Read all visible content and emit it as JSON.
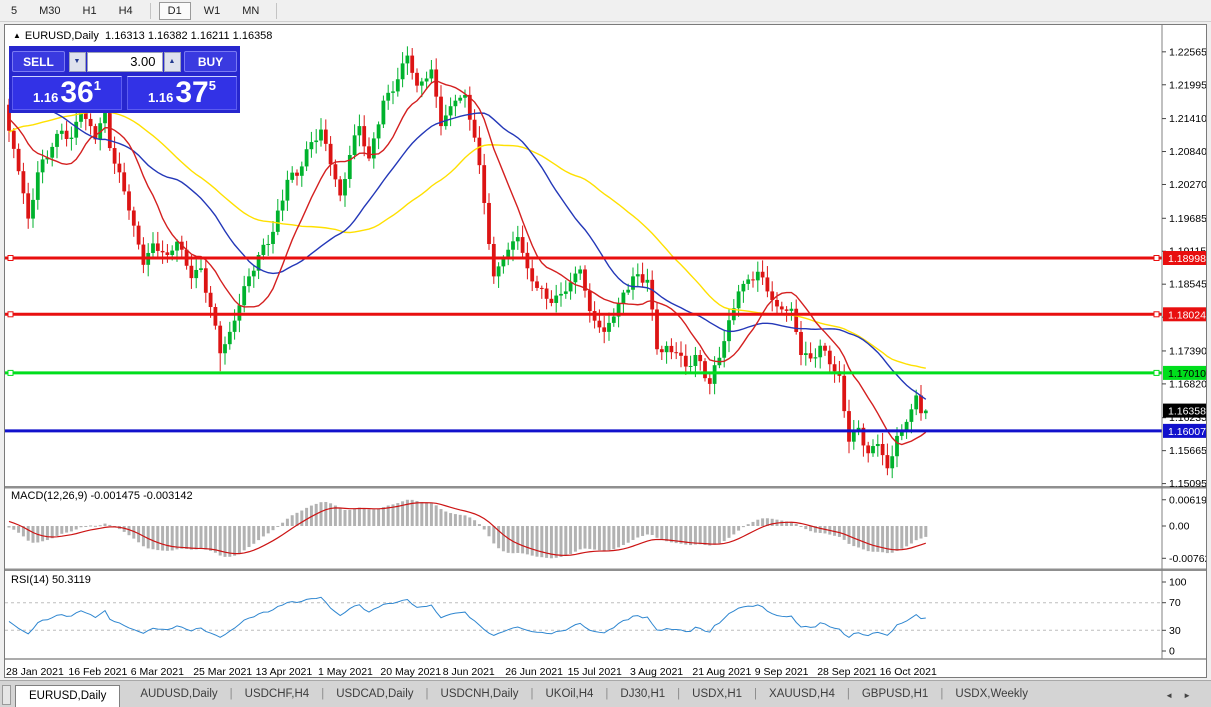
{
  "toolbar": {
    "timeframes": [
      "5",
      "M30",
      "H1",
      "H4",
      "D1",
      "W1",
      "MN"
    ],
    "active": "D1"
  },
  "chart_header": {
    "symbol": "EURUSD,Daily",
    "ohlc": "1.16313 1.16382 1.16211 1.16358"
  },
  "trade_panel": {
    "sell_label": "SELL",
    "buy_label": "BUY",
    "volume": "3.00",
    "sell_price": {
      "small": "1.16",
      "big": "36",
      "sup": "1"
    },
    "buy_price": {
      "small": "1.16",
      "big": "37",
      "sup": "5"
    }
  },
  "colors": {
    "candle_up": "#00B22D",
    "candle_down": "#DC1414",
    "hline_red": "#E80F0F",
    "hline_green": "#00DE1C",
    "hline_blue": "#1111CC",
    "ma_fast_red": "#D42020",
    "ma_mid_blue": "#2438B8",
    "ma_slow_yellow": "#FFE000",
    "macd_bar": "#B2B2B2",
    "macd_signal": "#CC1414",
    "rsi_line": "#2E86D0",
    "label_black_bg": "#000000",
    "axis_text": "#000000"
  },
  "price_axis": {
    "ticks": [
      1.22565,
      1.21995,
      1.2141,
      1.2084,
      1.2027,
      1.19685,
      1.19115,
      1.18545,
      1.17975,
      1.1739,
      1.1682,
      1.16235,
      1.15665,
      1.15095
    ],
    "colored_labels": [
      {
        "text": "1.18998",
        "price": 1.18998,
        "bg": "#E80F0F",
        "fg": "#ffffff"
      },
      {
        "text": "1.18024",
        "price": 1.18024,
        "bg": "#E80F0F",
        "fg": "#ffffff"
      },
      {
        "text": "1.17010",
        "price": 1.1701,
        "bg": "#00DE1C",
        "fg": "#000000"
      },
      {
        "text": "1.16358",
        "price": 1.16358,
        "bg": "#000000",
        "fg": "#ffffff"
      },
      {
        "text": "1.16007",
        "price": 1.16007,
        "bg": "#1111CC",
        "fg": "#ffffff"
      }
    ]
  },
  "macd": {
    "label": "MACD(12,26,9) -0.001475 -0.003142",
    "ticks": [
      {
        "text": "0.006193",
        "value": 0.006193
      },
      {
        "text": "0.00",
        "value": 0
      },
      {
        "text": "-0.007621",
        "value": -0.007621
      }
    ],
    "max": 0.006193,
    "min": -0.007621
  },
  "rsi": {
    "label": "RSI(14) 50.3119",
    "ticks": [
      100,
      70,
      30,
      0
    ],
    "levels": [
      70,
      30
    ],
    "period": 14
  },
  "chart_data": {
    "type": "candlestick",
    "symbol": "EURUSD",
    "timeframe": "Daily",
    "price_range_top": 1.22992,
    "price_range_bottom": 1.15039,
    "grid": false,
    "hlines": [
      {
        "price": 1.18998,
        "color": "#E80F0F",
        "width": 3,
        "markers": true
      },
      {
        "price": 1.18024,
        "color": "#E80F0F",
        "width": 3,
        "markers": true
      },
      {
        "price": 1.1701,
        "color": "#00DE1C",
        "width": 3,
        "markers": true
      },
      {
        "price": 1.16007,
        "color": "#1111CC",
        "width": 3,
        "markers": false
      }
    ],
    "moving_averages": [
      {
        "period": 50,
        "color": "#FFE000"
      },
      {
        "period": 30,
        "color": "#2438B8"
      },
      {
        "period": 12,
        "color": "#D42020"
      }
    ],
    "date_labels": [
      {
        "text": "28 Jan 2021",
        "index": 0
      },
      {
        "text": "16 Feb 2021",
        "index": 13
      },
      {
        "text": "6 Mar 2021",
        "index": 26
      },
      {
        "text": "25 Mar 2021",
        "index": 39
      },
      {
        "text": "13 Apr 2021",
        "index": 52
      },
      {
        "text": "1 May 2021",
        "index": 65
      },
      {
        "text": "20 May 2021",
        "index": 78
      },
      {
        "text": "8 Jun 2021",
        "index": 91
      },
      {
        "text": "26 Jun 2021",
        "index": 104
      },
      {
        "text": "15 Jul 2021",
        "index": 117
      },
      {
        "text": "3 Aug 2021",
        "index": 130
      },
      {
        "text": "21 Aug 2021",
        "index": 143
      },
      {
        "text": "9 Sep 2021",
        "index": 156
      },
      {
        "text": "28 Sep 2021",
        "index": 169
      },
      {
        "text": "16 Oct 2021",
        "index": 182
      }
    ],
    "pre_waypoints": [
      [
        -60,
        1.18
      ],
      [
        -50,
        1.185
      ],
      [
        -40,
        1.2
      ],
      [
        -30,
        1.213
      ],
      [
        -22,
        1.221
      ],
      [
        -15,
        1.233
      ],
      [
        -10,
        1.216
      ],
      [
        -5,
        1.2108
      ],
      [
        -1,
        1.2165
      ]
    ],
    "close_waypoints": [
      [
        0,
        1.212
      ],
      [
        2,
        1.205
      ],
      [
        4,
        1.1968
      ],
      [
        6,
        1.2048
      ],
      [
        9,
        1.2092
      ],
      [
        11,
        1.212
      ],
      [
        13,
        1.2108
      ],
      [
        15,
        1.2155
      ],
      [
        18,
        1.2105
      ],
      [
        20,
        1.2165
      ],
      [
        21,
        1.209
      ],
      [
        23,
        1.2048
      ],
      [
        25,
        1.1982
      ],
      [
        28,
        1.1888
      ],
      [
        30,
        1.1925
      ],
      [
        33,
        1.1905
      ],
      [
        35,
        1.1928
      ],
      [
        38,
        1.1865
      ],
      [
        40,
        1.1882
      ],
      [
        42,
        1.1815
      ],
      [
        44,
        1.1735
      ],
      [
        46,
        1.1772
      ],
      [
        48,
        1.1818
      ],
      [
        50,
        1.1868
      ],
      [
        52,
        1.1905
      ],
      [
        55,
        1.1945
      ],
      [
        58,
        1.2035
      ],
      [
        60,
        1.2042
      ],
      [
        62,
        1.2088
      ],
      [
        65,
        1.2122
      ],
      [
        67,
        1.2062
      ],
      [
        69,
        1.2008
      ],
      [
        71,
        1.2078
      ],
      [
        73,
        1.2128
      ],
      [
        75,
        1.2072
      ],
      [
        78,
        1.2172
      ],
      [
        80,
        1.2188
      ],
      [
        83,
        1.225
      ],
      [
        85,
        1.2198
      ],
      [
        88,
        1.2226
      ],
      [
        90,
        1.2128
      ],
      [
        93,
        1.2172
      ],
      [
        95,
        1.2182
      ],
      [
        97,
        1.2108
      ],
      [
        99,
        1.1995
      ],
      [
        101,
        1.1868
      ],
      [
        103,
        1.1898
      ],
      [
        106,
        1.1936
      ],
      [
        108,
        1.1882
      ],
      [
        110,
        1.1848
      ],
      [
        113,
        1.1822
      ],
      [
        116,
        1.1842
      ],
      [
        119,
        1.188
      ],
      [
        121,
        1.1808
      ],
      [
        124,
        1.1772
      ],
      [
        127,
        1.1822
      ],
      [
        130,
        1.1868
      ],
      [
        133,
        1.1862
      ],
      [
        135,
        1.1742
      ],
      [
        139,
        1.1736
      ],
      [
        141,
        1.1712
      ],
      [
        143,
        1.1732
      ],
      [
        146,
        1.1682
      ],
      [
        149,
        1.1756
      ],
      [
        152,
        1.1842
      ],
      [
        156,
        1.1876
      ],
      [
        158,
        1.1842
      ],
      [
        160,
        1.1816
      ],
      [
        163,
        1.1812
      ],
      [
        165,
        1.1732
      ],
      [
        167,
        1.1726
      ],
      [
        169,
        1.1748
      ],
      [
        171,
        1.1716
      ],
      [
        173,
        1.1696
      ],
      [
        175,
        1.1582
      ],
      [
        177,
        1.1606
      ],
      [
        179,
        1.1562
      ],
      [
        181,
        1.1578
      ],
      [
        183,
        1.1536
      ],
      [
        185,
        1.1592
      ],
      [
        186,
        1.1602
      ],
      [
        188,
        1.1638
      ],
      [
        189,
        1.1662
      ],
      [
        190,
        1.16313
      ],
      [
        191,
        1.16358
      ]
    ],
    "extremes": {
      "5": {
        "l": 1.1952
      },
      "20": {
        "h": 1.2243
      },
      "44": {
        "l": 1.1704
      },
      "83": {
        "h": 1.2266
      },
      "146": {
        "l": 1.1664
      },
      "183": {
        "l": 1.1524
      },
      "189": {
        "h": 1.1672
      },
      "191": {
        "h": 1.16382,
        "l": 1.16211
      }
    }
  },
  "tabs": {
    "active": "EURUSD,Daily",
    "items": [
      "EURUSD,Daily",
      "AUDUSD,Daily",
      "USDCHF,H4",
      "USDCAD,Daily",
      "USDCNH,Daily",
      "UKOil,H4",
      "DJ30,H1",
      "USDX,H1",
      "XAUUSD,H4",
      "GBPUSD,H1",
      "USDX,Weekly"
    ]
  }
}
